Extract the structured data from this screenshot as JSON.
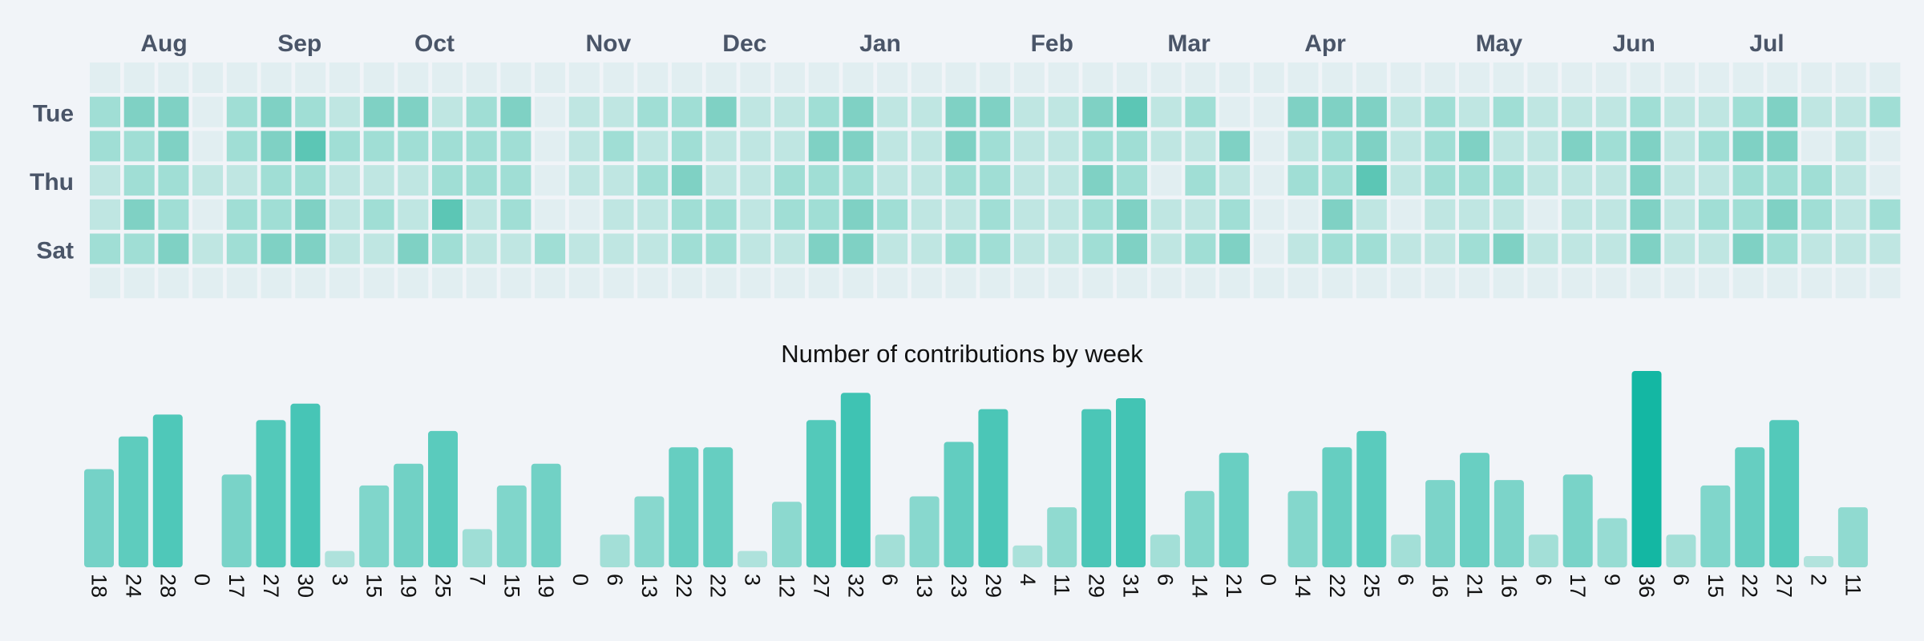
{
  "colors": {
    "background": "#f1f4f8",
    "empty_cell": "#e1eef1",
    "accent": "#14b7a3",
    "month_label": "#4a5568",
    "text": "#111111"
  },
  "heatmap": {
    "month_labels": [
      {
        "label": "Aug",
        "week": 2
      },
      {
        "label": "Sep",
        "week": 6
      },
      {
        "label": "Oct",
        "week": 10
      },
      {
        "label": "Nov",
        "week": 15
      },
      {
        "label": "Dec",
        "week": 19
      },
      {
        "label": "Jan",
        "week": 23
      },
      {
        "label": "Feb",
        "week": 28
      },
      {
        "label": "Mar",
        "week": 32
      },
      {
        "label": "Apr",
        "week": 36
      },
      {
        "label": "May",
        "week": 41
      },
      {
        "label": "Jun",
        "week": 45
      },
      {
        "label": "Jul",
        "week": 49
      }
    ],
    "day_labels": [
      {
        "label": "Tue",
        "row": 1
      },
      {
        "label": "Thu",
        "row": 3
      },
      {
        "label": "Sat",
        "row": 5
      }
    ],
    "weeks": 53,
    "rows": 7,
    "levels": [
      [
        0,
        0,
        0,
        0,
        0,
        0,
        0,
        0,
        0,
        0,
        0,
        0,
        0,
        0,
        0,
        0,
        0,
        0,
        0,
        0,
        0,
        0,
        0,
        0,
        0,
        0,
        0,
        0,
        0,
        0,
        0,
        0,
        0,
        0,
        0,
        0,
        0,
        0,
        0,
        0,
        0,
        0,
        0,
        0,
        0,
        0,
        0,
        0,
        0,
        0,
        0,
        0,
        0
      ],
      [
        2,
        3,
        3,
        0,
        2,
        3,
        2,
        1,
        3,
        3,
        1,
        2,
        3,
        0,
        1,
        1,
        2,
        2,
        3,
        1,
        1,
        2,
        3,
        1,
        1,
        3,
        3,
        1,
        1,
        3,
        4,
        1,
        2,
        0,
        0,
        3,
        3,
        3,
        1,
        2,
        1,
        2,
        1,
        1,
        1,
        2,
        1,
        1,
        2,
        3,
        1,
        1,
        2
      ],
      [
        2,
        2,
        3,
        0,
        2,
        3,
        4,
        2,
        2,
        2,
        2,
        2,
        2,
        0,
        1,
        2,
        1,
        2,
        1,
        1,
        1,
        3,
        3,
        1,
        1,
        3,
        2,
        1,
        1,
        2,
        2,
        1,
        1,
        3,
        0,
        1,
        2,
        3,
        1,
        2,
        3,
        1,
        1,
        3,
        2,
        3,
        1,
        2,
        3,
        3,
        0,
        1,
        0
      ],
      [
        1,
        2,
        2,
        1,
        1,
        2,
        2,
        1,
        1,
        1,
        2,
        2,
        2,
        0,
        1,
        1,
        2,
        3,
        1,
        1,
        2,
        2,
        2,
        1,
        1,
        2,
        2,
        1,
        1,
        3,
        2,
        0,
        2,
        1,
        0,
        2,
        2,
        4,
        1,
        2,
        2,
        2,
        1,
        1,
        1,
        3,
        1,
        1,
        2,
        2,
        2,
        1,
        0
      ],
      [
        1,
        3,
        2,
        0,
        2,
        2,
        3,
        1,
        2,
        1,
        4,
        1,
        2,
        0,
        0,
        1,
        1,
        2,
        2,
        1,
        2,
        2,
        3,
        2,
        1,
        1,
        2,
        1,
        1,
        2,
        3,
        1,
        1,
        2,
        0,
        0,
        3,
        1,
        0,
        1,
        1,
        1,
        0,
        1,
        1,
        3,
        1,
        2,
        2,
        3,
        2,
        1,
        2
      ],
      [
        2,
        2,
        3,
        1,
        2,
        3,
        3,
        1,
        1,
        3,
        2,
        1,
        1,
        2,
        1,
        1,
        1,
        2,
        2,
        1,
        1,
        3,
        3,
        1,
        1,
        2,
        2,
        1,
        1,
        2,
        3,
        1,
        2,
        3,
        0,
        1,
        2,
        2,
        1,
        1,
        2,
        3,
        1,
        1,
        1,
        3,
        1,
        1,
        3,
        2,
        1,
        1,
        1
      ],
      [
        0,
        0,
        0,
        0,
        0,
        0,
        0,
        0,
        0,
        0,
        0,
        0,
        0,
        0,
        0,
        0,
        0,
        0,
        0,
        0,
        0,
        0,
        0,
        0,
        0,
        0,
        0,
        0,
        0,
        0,
        0,
        0,
        0,
        0,
        0,
        0,
        0,
        0,
        0,
        0,
        0,
        0,
        0,
        0,
        0,
        0,
        0,
        0,
        0,
        0,
        0,
        0,
        0
      ]
    ]
  },
  "chart_data": {
    "type": "bar",
    "title": "Number of contributions by week",
    "xlabel": "",
    "ylabel": "",
    "ylim": [
      0,
      36
    ],
    "grid": false,
    "values": [
      18,
      24,
      28,
      0,
      17,
      27,
      30,
      3,
      15,
      19,
      25,
      7,
      15,
      19,
      0,
      6,
      13,
      22,
      22,
      3,
      12,
      27,
      32,
      6,
      13,
      23,
      29,
      4,
      11,
      29,
      31,
      6,
      14,
      21,
      0,
      14,
      22,
      25,
      6,
      16,
      21,
      16,
      6,
      17,
      9,
      36,
      6,
      15,
      22,
      27,
      2,
      11
    ],
    "labels": [
      "18",
      "24",
      "28",
      "0",
      "17",
      "27",
      "30",
      "3",
      "15",
      "19",
      "25",
      "7",
      "15",
      "19",
      "0",
      "6",
      "13",
      "22",
      "22",
      "3",
      "12",
      "27",
      "32",
      "6",
      "13",
      "23",
      "29",
      "4",
      "11",
      "29",
      "31",
      "6",
      "14",
      "21",
      "0",
      "14",
      "22",
      "25",
      "6",
      "16",
      "21",
      "16",
      "6",
      "17",
      "9",
      "36",
      "6",
      "15",
      "22",
      "27",
      "2",
      "11"
    ]
  }
}
